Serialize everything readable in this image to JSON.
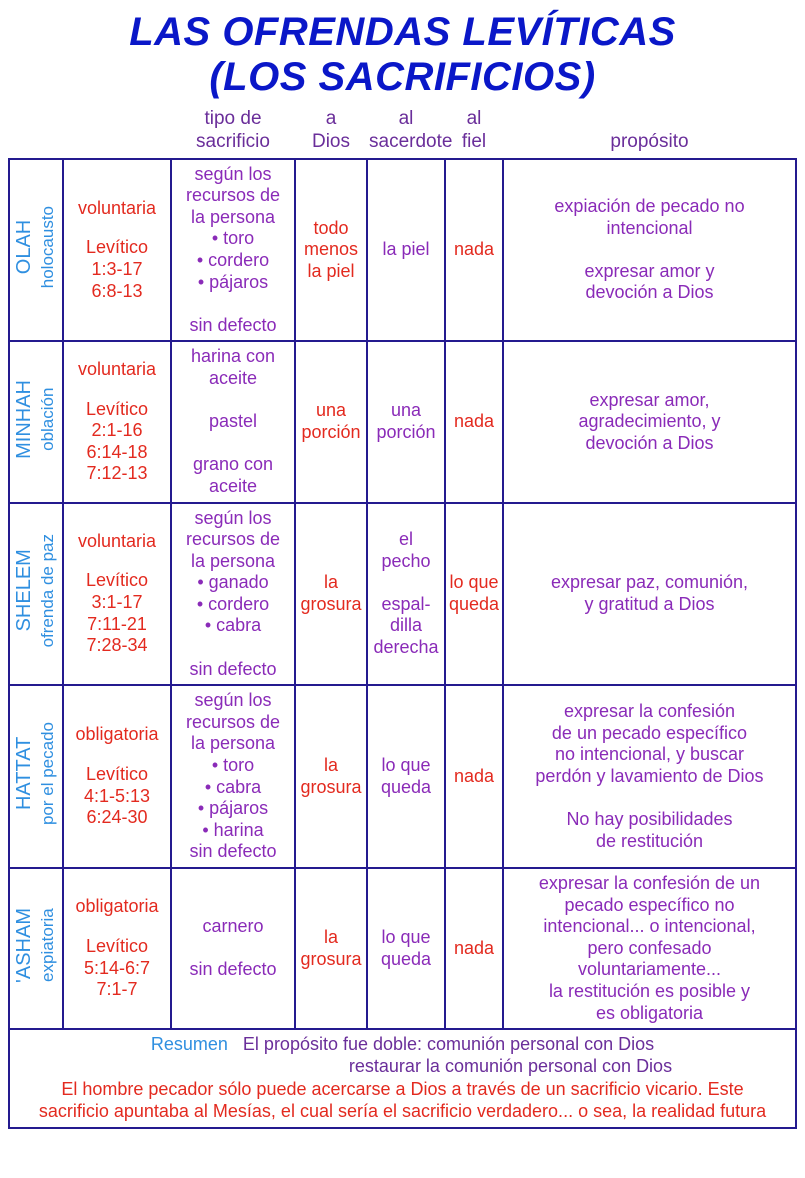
{
  "colors": {
    "title_blue": "#0a17c8",
    "header_purple": "#6a2e9a",
    "border_navy": "#241a8f",
    "name_blue": "#2f8fe0",
    "vol_red": "#e32a1f",
    "ref_red": "#e32a1f",
    "tipo_purple": "#8a2bb8",
    "dios_red": "#e32a1f",
    "sacer_purple": "#8a2bb8",
    "fiel_red": "#e32a1f",
    "prop_purple": "#8a2bb8",
    "foot_red": "#e32a1f"
  },
  "typography": {
    "title_fontsize": "40px",
    "header_fontsize": "19px",
    "cell_fontsize": "18px",
    "name_fontsize": "20px"
  },
  "title": {
    "line1": "LAS OFRENDAS LEVÍTICAS",
    "line2": "(LOS SACRIFICIOS)"
  },
  "headers": {
    "tipo": "tipo de\nsacrificio",
    "dios": "a\nDios",
    "sacerdote": "al\nsacerdote",
    "fiel": "al\nfiel",
    "proposito": "propósito"
  },
  "rows": [
    {
      "name": "OLAH",
      "sub": "holocausto",
      "vol": "voluntaria",
      "ref": "Levítico\n1:3-17\n6:8-13",
      "tipo": "según los\nrecursos de\nla persona\n• toro\n• cordero\n• pájaros\n\nsin defecto",
      "dios": "todo\nmenos\nla piel",
      "sacer": "la piel",
      "fiel": "nada",
      "prop": "expiación de pecado no\nintencional\n\nexpresar amor y\ndevoción a Dios"
    },
    {
      "name": "MINHAH",
      "sub": "oblación",
      "vol": "voluntaria",
      "ref": "Levítico\n2:1-16\n6:14-18\n7:12-13",
      "tipo": "harina con\naceite\n\npastel\n\ngrano con\naceite",
      "dios": "una\nporción",
      "sacer": "una\nporción",
      "fiel": "nada",
      "prop": "expresar amor,\nagradecimiento, y\ndevoción a Dios"
    },
    {
      "name": "SHELEM",
      "sub": "ofrenda de paz",
      "vol": "voluntaria",
      "ref": "Levítico\n3:1-17\n7:11-21\n7:28-34",
      "tipo": "según los\nrecursos de\nla persona\n• ganado\n• cordero\n• cabra\n\nsin defecto",
      "dios": "la\ngrosura",
      "sacer": "el\npecho\n\nespal-\ndilla\nderecha",
      "fiel": "lo que\nqueda",
      "prop": "expresar paz, comunión,\ny gratitud a Dios"
    },
    {
      "name": "HATTAT",
      "sub": "por el pecado",
      "vol": "obligatoria",
      "ref": "Levítico\n4:1-5:13\n6:24-30",
      "tipo": "según los\nrecursos de\nla persona\n• toro\n• cabra\n• pájaros\n• harina\nsin defecto",
      "dios": "la\ngrosura",
      "sacer": "lo que\nqueda",
      "fiel": "nada",
      "prop": "expresar la confesión\nde un pecado específico\nno intencional, y buscar\nperdón y lavamiento de Dios\n\nNo hay posibilidades\nde restitución"
    },
    {
      "name": "'ASHAM",
      "sub": "expiatoria",
      "vol": "obligatoria",
      "ref": "Levítico\n5:14-6:7\n7:1-7",
      "tipo": "carnero\n\nsin defecto",
      "dios": "la\ngrosura",
      "sacer": "lo que\nqueda",
      "fiel": "nada",
      "prop": "expresar la confesión de un\npecado específico no\nintencional... o intencional,\npero confesado\nvoluntariamente...\nla restitución es posible y\nes obligatoria"
    }
  ],
  "summary": {
    "label": "Resumen",
    "line1": "El propósito fue doble: comunión personal con Dios",
    "line2": "restaurar la comunión personal con Dios",
    "foot1": "El hombre pecador sólo puede acercarse a Dios a través de un sacrificio vicario. Este",
    "foot2": "sacrificio apuntaba al Mesías, el cual sería el sacrificio verdadero... o sea, la realidad futura"
  }
}
